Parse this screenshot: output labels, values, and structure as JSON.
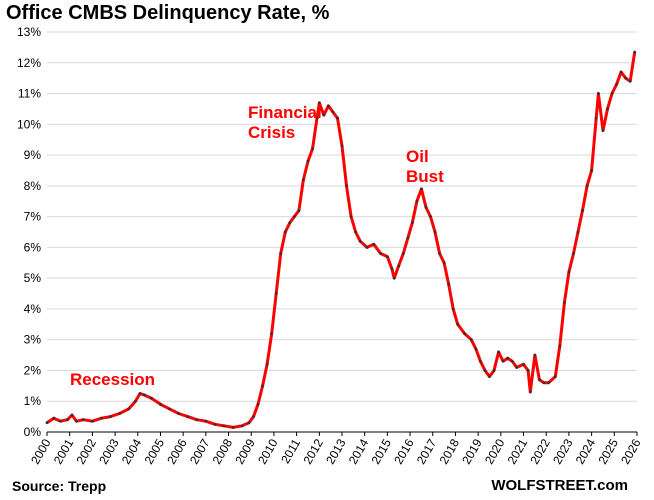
{
  "title": "Office CMBS Delinquency Rate, %",
  "source": "Source: Trepp",
  "brand": "WOLFSTREET.com",
  "colors": {
    "line": "#ff0000",
    "markers": "#333333",
    "grid": "#d9d9d9",
    "annotation": "#ff0000"
  },
  "annotations": {
    "recession": "Recession",
    "financial_crisis_1": "Financial",
    "financial_crisis_2": "Crisis",
    "oil_bust_1": "Oil",
    "oil_bust_2": "Bust"
  },
  "chart_data": {
    "type": "line",
    "title": "Office CMBS Delinquency Rate, %",
    "xlabel": "",
    "ylabel": "",
    "xlim": [
      2000,
      2026
    ],
    "ylim": [
      0,
      13
    ],
    "grid": true,
    "y_ticks": [
      "0%",
      "1%",
      "2%",
      "3%",
      "4%",
      "5%",
      "6%",
      "7%",
      "8%",
      "9%",
      "10%",
      "11%",
      "12%",
      "13%"
    ],
    "x_ticks": [
      "2000",
      "2001",
      "2002",
      "2003",
      "2004",
      "2005",
      "2006",
      "2007",
      "2008",
      "2009",
      "2010",
      "2011",
      "2012",
      "2013",
      "2014",
      "2015",
      "2016",
      "2017",
      "2018",
      "2019",
      "2020",
      "2021",
      "2022",
      "2023",
      "2024",
      "2025",
      "2026"
    ],
    "series": [
      {
        "points": [
          [
            2000.0,
            0.3
          ],
          [
            2000.3,
            0.45
          ],
          [
            2000.6,
            0.35
          ],
          [
            2000.9,
            0.4
          ],
          [
            2001.1,
            0.55
          ],
          [
            2001.3,
            0.35
          ],
          [
            2001.6,
            0.4
          ],
          [
            2002.0,
            0.35
          ],
          [
            2002.4,
            0.45
          ],
          [
            2002.8,
            0.5
          ],
          [
            2003.2,
            0.6
          ],
          [
            2003.6,
            0.75
          ],
          [
            2003.9,
            1.0
          ],
          [
            2004.1,
            1.25
          ],
          [
            2004.3,
            1.2
          ],
          [
            2004.6,
            1.1
          ],
          [
            2005.0,
            0.9
          ],
          [
            2005.4,
            0.75
          ],
          [
            2005.8,
            0.6
          ],
          [
            2006.2,
            0.5
          ],
          [
            2006.6,
            0.4
          ],
          [
            2007.0,
            0.35
          ],
          [
            2007.4,
            0.25
          ],
          [
            2007.8,
            0.2
          ],
          [
            2008.2,
            0.15
          ],
          [
            2008.6,
            0.2
          ],
          [
            2008.9,
            0.3
          ],
          [
            2009.1,
            0.5
          ],
          [
            2009.3,
            0.9
          ],
          [
            2009.5,
            1.5
          ],
          [
            2009.7,
            2.2
          ],
          [
            2009.9,
            3.2
          ],
          [
            2010.1,
            4.5
          ],
          [
            2010.3,
            5.8
          ],
          [
            2010.5,
            6.5
          ],
          [
            2010.7,
            6.8
          ],
          [
            2010.9,
            7.0
          ],
          [
            2011.1,
            7.2
          ],
          [
            2011.3,
            8.2
          ],
          [
            2011.5,
            8.8
          ],
          [
            2011.7,
            9.2
          ],
          [
            2011.9,
            10.2
          ],
          [
            2012.0,
            10.7
          ],
          [
            2012.2,
            10.3
          ],
          [
            2012.4,
            10.6
          ],
          [
            2012.6,
            10.4
          ],
          [
            2012.8,
            10.2
          ],
          [
            2013.0,
            9.3
          ],
          [
            2013.2,
            8.0
          ],
          [
            2013.4,
            7.0
          ],
          [
            2013.6,
            6.5
          ],
          [
            2013.8,
            6.2
          ],
          [
            2014.1,
            6.0
          ],
          [
            2014.4,
            6.1
          ],
          [
            2014.7,
            5.8
          ],
          [
            2015.0,
            5.7
          ],
          [
            2015.2,
            5.3
          ],
          [
            2015.3,
            5.0
          ],
          [
            2015.5,
            5.4
          ],
          [
            2015.7,
            5.8
          ],
          [
            2015.9,
            6.3
          ],
          [
            2016.1,
            6.8
          ],
          [
            2016.3,
            7.5
          ],
          [
            2016.5,
            7.9
          ],
          [
            2016.7,
            7.3
          ],
          [
            2016.9,
            7.0
          ],
          [
            2017.1,
            6.5
          ],
          [
            2017.3,
            5.8
          ],
          [
            2017.5,
            5.5
          ],
          [
            2017.7,
            4.8
          ],
          [
            2017.9,
            4.0
          ],
          [
            2018.1,
            3.5
          ],
          [
            2018.4,
            3.2
          ],
          [
            2018.7,
            3.0
          ],
          [
            2018.9,
            2.7
          ],
          [
            2019.1,
            2.3
          ],
          [
            2019.3,
            2.0
          ],
          [
            2019.5,
            1.8
          ],
          [
            2019.7,
            2.0
          ],
          [
            2019.9,
            2.6
          ],
          [
            2020.1,
            2.3
          ],
          [
            2020.3,
            2.4
          ],
          [
            2020.5,
            2.3
          ],
          [
            2020.7,
            2.1
          ],
          [
            2021.0,
            2.2
          ],
          [
            2021.2,
            2.0
          ],
          [
            2021.3,
            1.3
          ],
          [
            2021.5,
            2.5
          ],
          [
            2021.7,
            1.7
          ],
          [
            2021.9,
            1.6
          ],
          [
            2022.1,
            1.6
          ],
          [
            2022.4,
            1.8
          ],
          [
            2022.6,
            2.8
          ],
          [
            2022.8,
            4.2
          ],
          [
            2023.0,
            5.2
          ],
          [
            2023.2,
            5.8
          ],
          [
            2023.4,
            6.5
          ],
          [
            2023.6,
            7.2
          ],
          [
            2023.8,
            8.0
          ],
          [
            2024.0,
            8.5
          ],
          [
            2024.2,
            10.2
          ],
          [
            2024.3,
            11.0
          ],
          [
            2024.5,
            9.8
          ],
          [
            2024.7,
            10.5
          ],
          [
            2024.9,
            11.0
          ],
          [
            2025.1,
            11.3
          ],
          [
            2025.3,
            11.7
          ],
          [
            2025.5,
            11.5
          ],
          [
            2025.7,
            11.4
          ],
          [
            2025.9,
            12.35
          ]
        ]
      }
    ]
  }
}
